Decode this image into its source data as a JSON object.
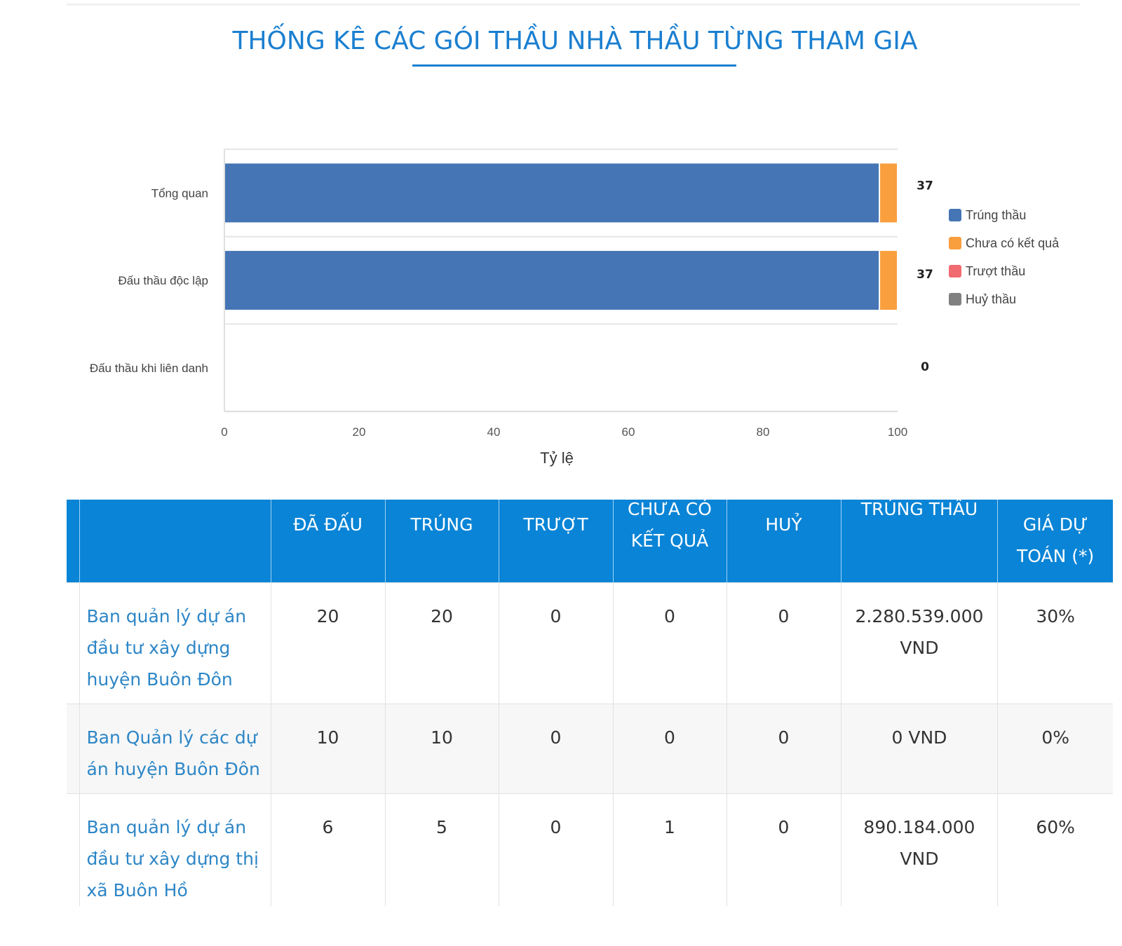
{
  "title": "THỐNG KÊ CÁC GÓI THẦU NHÀ THẦU TỪNG THAM GIA",
  "chart_data": {
    "type": "bar",
    "orientation": "horizontal",
    "stacked": "percent",
    "categories": [
      "Tổng quan",
      "Đấu thầu độc lập",
      "Đấu thầu khi liên danh"
    ],
    "totals": [
      "37",
      "37",
      "0"
    ],
    "series": [
      {
        "name": "Trúng thầu",
        "color": "#4575b4",
        "values": [
          36,
          36,
          0
        ]
      },
      {
        "name": "Chưa có kết quả",
        "color": "#f99f3e",
        "values": [
          1,
          1,
          0
        ]
      },
      {
        "name": "Trượt thầu",
        "color": "#f06a6f",
        "values": [
          0,
          0,
          0
        ]
      },
      {
        "name": "Huỷ thầu",
        "color": "#808080",
        "values": [
          0,
          0,
          0
        ]
      }
    ],
    "xlabel": "Tỷ lệ",
    "xlim": [
      0,
      100
    ],
    "xticks": [
      "0",
      "20",
      "40",
      "60",
      "80",
      "100"
    ],
    "legend": "right"
  },
  "table": {
    "headers": [
      "",
      "ĐÃ ĐẤU",
      "TRÚNG",
      "TRƯỢT",
      "CHƯA CÓ KẾT QUẢ",
      "HUỶ",
      "TRÚNG THẦU",
      "GIÁ DỰ TOÁN (*)"
    ],
    "header_lines": {
      "chua": [
        "CHƯA CÓ",
        "KẾT QUẢ"
      ],
      "gia": [
        "GIÁ DỰ",
        "TOÁN (*)"
      ]
    },
    "rows": [
      [
        "Ban quản lý dự án đầu tư xây dựng huyện Buôn Đôn",
        "20",
        "20",
        "0",
        "0",
        "0",
        "2.280.539.000 VND",
        "30%"
      ],
      [
        "Ban Quản lý các dự án huyện Buôn Đôn",
        "10",
        "10",
        "0",
        "0",
        "0",
        "0 VND",
        "0%"
      ],
      [
        "Ban quản lý dự án đầu tư xây dựng thị xã Buôn Hồ",
        "6",
        "5",
        "0",
        "1",
        "0",
        "890.184.000 VND",
        "60%"
      ]
    ]
  }
}
